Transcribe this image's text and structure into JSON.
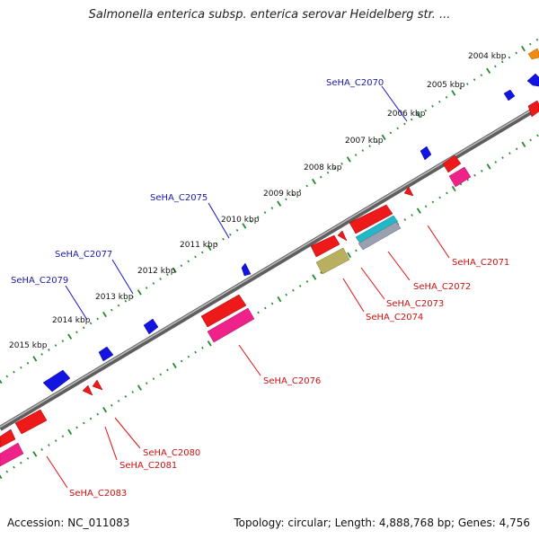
{
  "title": "Salmonella enterica subsp. enterica serovar Heidelberg str. ...",
  "footer": {
    "accession": "Accession: NC_011083",
    "summary": "Topology: circular; Length: 4,888,768 bp; Genes: 4,756"
  },
  "colors": {
    "backbone": "#8c8c8c",
    "ticks": "#1f8a2a",
    "plus_strand_gene": "#1414e0",
    "minus_strand_gene": "#ee1a1a",
    "label_plus": "#1a1aa8",
    "label_minus": "#cc1111",
    "cds_feature": "#ee2288",
    "other_feature_cyan": "#22b8c8",
    "other_feature_olive": "#b8b060",
    "orange_feature": "#f08a10"
  },
  "ruler": [
    "2004 kbp",
    "2005 kbp",
    "2006 kbp",
    "2007 kbp",
    "2008 kbp",
    "2009 kbp",
    "2010 kbp",
    "2011 kbp",
    "2012 kbp",
    "2013 kbp",
    "2014 kbp",
    "2015 kbp"
  ],
  "labels_plus": [
    "SeHA_C2070",
    "SeHA_C2075",
    "SeHA_C2077",
    "SeHA_C2079"
  ],
  "labels_minus": [
    "SeHA_C2071",
    "SeHA_C2072",
    "SeHA_C2073",
    "SeHA_C2074",
    "SeHA_C2076",
    "SeHA_C2080",
    "SeHA_C2081",
    "SeHA_C2083"
  ]
}
